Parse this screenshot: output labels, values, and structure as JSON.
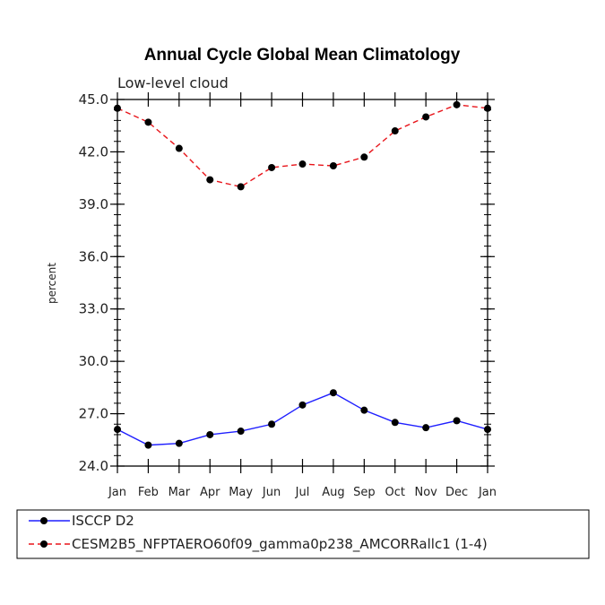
{
  "chart_data": {
    "type": "line",
    "title": "Annual Cycle Global Mean Climatology",
    "subtitle": "Low-level cloud",
    "xlabel": "",
    "ylabel": "percent",
    "ylim": [
      24.0,
      45.0
    ],
    "yticks": [
      24.0,
      27.0,
      30.0,
      33.0,
      36.0,
      39.0,
      42.0,
      45.0
    ],
    "ytick_labels": [
      "24.0",
      "27.0",
      "30.0",
      "33.0",
      "36.0",
      "39.0",
      "42.0",
      "45.0"
    ],
    "categories": [
      "Jan",
      "Feb",
      "Mar",
      "Apr",
      "May",
      "Jun",
      "Jul",
      "Aug",
      "Sep",
      "Oct",
      "Nov",
      "Dec",
      "Jan"
    ],
    "series": [
      {
        "name": "ISCCP D2",
        "color": "#1f1fff",
        "dash": "solid",
        "values": [
          26.1,
          25.2,
          25.3,
          25.8,
          26.0,
          26.4,
          27.5,
          28.2,
          27.2,
          26.5,
          26.2,
          26.6,
          26.1
        ]
      },
      {
        "name": "CESM2B5_NFPTAERO60f09_gamma0p238_AMCORRallc1 (1-4)",
        "color": "#e8141a",
        "dash": "dashed",
        "values": [
          44.5,
          43.7,
          42.2,
          40.4,
          40.0,
          41.1,
          41.3,
          41.2,
          41.7,
          43.2,
          44.0,
          44.7,
          44.5
        ]
      }
    ]
  }
}
